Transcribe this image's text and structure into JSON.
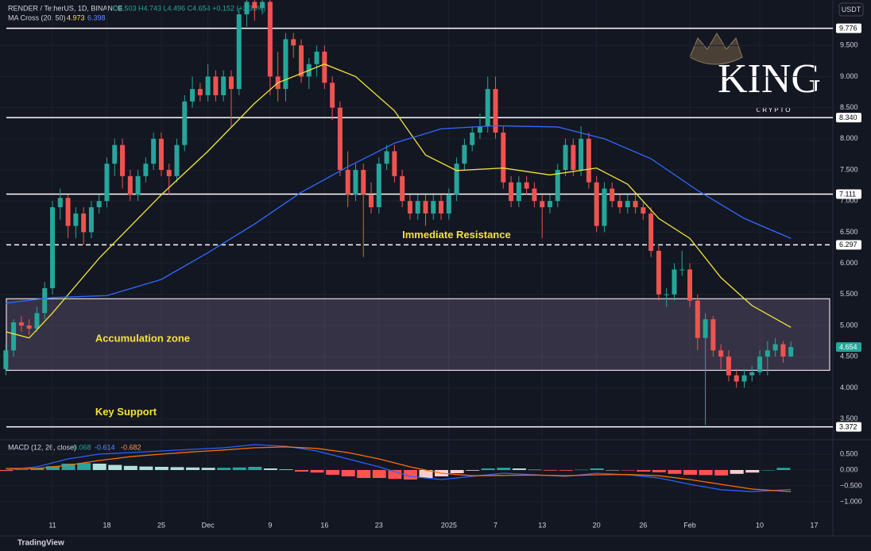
{
  "chart_data": {
    "type": "candlestick",
    "header": {
      "symbol": "RENDER / TetherUS, 1D, BINANCE",
      "ohlc": "O4.503 H4.743 L4.496 C4.654 +0.152 (+3.38%)",
      "currency": "USDT"
    },
    "watermark": {
      "title": "KING",
      "subtitle": "CRYPTO"
    },
    "footer": "TradingView",
    "xlim": [
      -6.75,
      100.4
    ],
    "xticks": [
      {
        "value": 0,
        "label": "11"
      },
      {
        "value": 7,
        "label": "18"
      },
      {
        "value": 14,
        "label": "25"
      },
      {
        "value": 20,
        "label": "Dec"
      },
      {
        "value": 28,
        "label": "9"
      },
      {
        "value": 35,
        "label": "16"
      },
      {
        "value": 42,
        "label": "23"
      },
      {
        "value": 51,
        "label": "2025"
      },
      {
        "value": 57,
        "label": "7"
      },
      {
        "value": 63,
        "label": "13"
      },
      {
        "value": 70,
        "label": "20"
      },
      {
        "value": 76,
        "label": "26"
      },
      {
        "value": 82,
        "label": "Feb"
      },
      {
        "value": 91,
        "label": "10"
      },
      {
        "value": 98,
        "label": "17"
      }
    ],
    "ylim": [
      3.214,
      10.23
    ],
    "yticks": [
      {
        "value": 9.5,
        "label": "9.500"
      },
      {
        "value": 9,
        "label": "9.000"
      },
      {
        "value": 8.5,
        "label": "8.500"
      },
      {
        "value": 8,
        "label": "8.000"
      },
      {
        "value": 7.5,
        "label": "7.500"
      },
      {
        "value": 7,
        "label": "7.000"
      },
      {
        "value": 6.5,
        "label": "6.500"
      },
      {
        "value": 6,
        "label": "6.000"
      },
      {
        "value": 5.5,
        "label": "5.500"
      },
      {
        "value": 5,
        "label": "5.000"
      },
      {
        "value": 4.5,
        "label": "4.500"
      },
      {
        "value": 4,
        "label": "4.000"
      },
      {
        "value": 3.5,
        "label": "3.500"
      }
    ],
    "grid": true,
    "up_color": "#26a69a",
    "down_color": "#ef5350",
    "candles": {
      "x": [
        -6,
        -5,
        -4,
        -3,
        -2,
        -1,
        0,
        1,
        2,
        3,
        4,
        5,
        6,
        7,
        8,
        9,
        10,
        11,
        12,
        13,
        14,
        15,
        16,
        17,
        18,
        19,
        20,
        21,
        22,
        23,
        24,
        25,
        26,
        27,
        28,
        29,
        30,
        31,
        32,
        33,
        34,
        35,
        36,
        37,
        38,
        39,
        40,
        41,
        42,
        43,
        44,
        45,
        46,
        47,
        48,
        49,
        50,
        51,
        52,
        53,
        54,
        55,
        56,
        57,
        58,
        59,
        60,
        61,
        62,
        63,
        64,
        65,
        66,
        67,
        68,
        69,
        70,
        71,
        72,
        73,
        74,
        75,
        76,
        77,
        78,
        79,
        80,
        81,
        82,
        83,
        84,
        85,
        86,
        87,
        88,
        89,
        90,
        91,
        92,
        93,
        94,
        95
      ],
      "values": [
        [
          4.3,
          4.7,
          4.2,
          4.6
        ],
        [
          4.6,
          5.1,
          4.5,
          5.05
        ],
        [
          5.05,
          5.15,
          4.9,
          5.0
        ],
        [
          5.0,
          5.1,
          4.85,
          4.95
        ],
        [
          4.95,
          5.3,
          4.9,
          5.2
        ],
        [
          5.2,
          5.7,
          5.1,
          5.6
        ],
        [
          5.6,
          7.0,
          5.5,
          6.9
        ],
        [
          6.9,
          7.2,
          6.7,
          7.05
        ],
        [
          7.05,
          7.1,
          6.4,
          6.6
        ],
        [
          6.6,
          6.9,
          6.4,
          6.8
        ],
        [
          6.8,
          6.9,
          6.3,
          6.5
        ],
        [
          6.5,
          7.0,
          6.4,
          6.9
        ],
        [
          6.9,
          7.1,
          6.8,
          7.0
        ],
        [
          7.0,
          7.7,
          6.9,
          7.6
        ],
        [
          7.6,
          8.0,
          7.4,
          7.9
        ],
        [
          7.9,
          8.0,
          7.2,
          7.4
        ],
        [
          7.4,
          7.5,
          7.0,
          7.1
        ],
        [
          7.1,
          7.5,
          7.0,
          7.4
        ],
        [
          7.4,
          7.7,
          7.3,
          7.6
        ],
        [
          7.6,
          8.1,
          7.5,
          8.0
        ],
        [
          8.0,
          8.1,
          7.4,
          7.5
        ],
        [
          7.5,
          7.6,
          7.1,
          7.4
        ],
        [
          7.4,
          8.0,
          7.3,
          7.9
        ],
        [
          7.9,
          8.7,
          7.8,
          8.6
        ],
        [
          8.6,
          9.0,
          8.5,
          8.8
        ],
        [
          8.8,
          8.9,
          8.6,
          8.7
        ],
        [
          8.7,
          9.2,
          8.6,
          9.0
        ],
        [
          9.0,
          9.1,
          8.6,
          8.7
        ],
        [
          8.7,
          9.1,
          8.6,
          9.0
        ],
        [
          9.0,
          9.1,
          8.2,
          8.8
        ],
        [
          8.8,
          10.1,
          8.7,
          10.0
        ],
        [
          10.0,
          10.23,
          9.8,
          10.2
        ],
        [
          10.2,
          10.23,
          9.9,
          10.1
        ],
        [
          10.1,
          10.23,
          10.0,
          10.2
        ],
        [
          10.2,
          10.23,
          8.7,
          9.0
        ],
        [
          9.0,
          9.4,
          8.6,
          8.8
        ],
        [
          8.8,
          9.7,
          8.6,
          9.6
        ],
        [
          9.6,
          9.7,
          9.3,
          9.5
        ],
        [
          9.5,
          9.6,
          8.9,
          9.0
        ],
        [
          9.0,
          9.3,
          8.8,
          9.2
        ],
        [
          9.2,
          9.5,
          9.0,
          9.4
        ],
        [
          9.4,
          9.5,
          8.8,
          8.9
        ],
        [
          8.9,
          9.0,
          8.3,
          8.5
        ],
        [
          8.5,
          8.6,
          7.4,
          7.5
        ],
        [
          7.5,
          7.8,
          6.9,
          7.1
        ],
        [
          7.1,
          7.6,
          7.0,
          7.5
        ],
        [
          7.5,
          7.6,
          6.1,
          7.1
        ],
        [
          7.1,
          7.3,
          6.8,
          6.9
        ],
        [
          6.9,
          7.7,
          6.8,
          7.6
        ],
        [
          7.6,
          7.9,
          7.5,
          7.8
        ],
        [
          7.8,
          7.9,
          7.3,
          7.4
        ],
        [
          7.4,
          7.5,
          6.9,
          7.0
        ],
        [
          7.0,
          7.1,
          6.7,
          6.8
        ],
        [
          6.8,
          7.1,
          6.7,
          7.0
        ],
        [
          7.0,
          7.1,
          6.6,
          6.8
        ],
        [
          6.8,
          7.1,
          6.7,
          7.0
        ],
        [
          7.0,
          7.1,
          6.7,
          6.8
        ],
        [
          6.8,
          7.2,
          6.7,
          7.1
        ],
        [
          7.1,
          7.7,
          7.0,
          7.6
        ],
        [
          7.6,
          8.0,
          7.5,
          7.9
        ],
        [
          7.9,
          8.2,
          7.8,
          8.1
        ],
        [
          8.1,
          8.4,
          8.0,
          8.2
        ],
        [
          8.2,
          9.0,
          8.1,
          8.8
        ],
        [
          8.8,
          9.0,
          8.0,
          8.1
        ],
        [
          8.1,
          8.2,
          7.2,
          7.3
        ],
        [
          7.3,
          7.4,
          6.9,
          7.0
        ],
        [
          7.0,
          7.4,
          6.9,
          7.3
        ],
        [
          7.3,
          7.4,
          7.1,
          7.2
        ],
        [
          7.2,
          7.3,
          6.9,
          7.0
        ],
        [
          7.0,
          7.1,
          6.4,
          6.9
        ],
        [
          6.9,
          7.1,
          6.8,
          7.0
        ],
        [
          7.0,
          7.6,
          6.9,
          7.5
        ],
        [
          7.5,
          8.0,
          7.4,
          7.9
        ],
        [
          7.9,
          8.0,
          7.4,
          7.5
        ],
        [
          7.5,
          8.2,
          7.4,
          8.0
        ],
        [
          8.0,
          8.1,
          7.2,
          7.3
        ],
        [
          7.3,
          7.4,
          6.5,
          6.6
        ],
        [
          6.6,
          7.3,
          6.5,
          7.2
        ],
        [
          7.2,
          7.3,
          6.9,
          7.0
        ],
        [
          7.0,
          7.1,
          6.8,
          6.9
        ],
        [
          6.9,
          7.1,
          6.8,
          7.0
        ],
        [
          7.0,
          7.1,
          6.8,
          6.9
        ],
        [
          6.9,
          7.0,
          6.7,
          6.8
        ],
        [
          6.8,
          6.9,
          6.1,
          6.2
        ],
        [
          6.2,
          6.3,
          5.4,
          5.5
        ],
        [
          5.5,
          5.6,
          5.3,
          5.5
        ],
        [
          5.5,
          6.0,
          5.4,
          5.9
        ],
        [
          5.9,
          6.2,
          5.8,
          5.9
        ],
        [
          5.9,
          6.0,
          5.3,
          5.4
        ],
        [
          5.4,
          5.5,
          4.6,
          4.8
        ],
        [
          4.8,
          5.2,
          3.4,
          5.1
        ],
        [
          5.1,
          5.15,
          4.5,
          4.6
        ],
        [
          4.6,
          4.7,
          4.3,
          4.5
        ],
        [
          4.5,
          4.6,
          4.1,
          4.2
        ],
        [
          4.2,
          4.3,
          4.0,
          4.1
        ],
        [
          4.1,
          4.3,
          4.0,
          4.2
        ],
        [
          4.2,
          4.35,
          4.1,
          4.25
        ],
        [
          4.25,
          4.6,
          4.2,
          4.5
        ],
        [
          4.5,
          4.75,
          4.2,
          4.6
        ],
        [
          4.6,
          4.8,
          4.5,
          4.7
        ],
        [
          4.7,
          4.75,
          4.4,
          4.502
        ],
        [
          4.503,
          4.743,
          4.496,
          4.654
        ]
      ]
    },
    "ma": {
      "label": "MA Cross (20, 50)",
      "series": [
        {
          "name": "MA 20",
          "color": "#f5e33b",
          "last_value": 4.973,
          "x": [
            -6,
            -3,
            0,
            6,
            14,
            20,
            26,
            29,
            35,
            39,
            44,
            48,
            52,
            58,
            64,
            70,
            74,
            78,
            82,
            86,
            90,
            95
          ],
          "values": [
            4.9,
            4.8,
            5.2,
            6.08,
            7.1,
            7.8,
            8.57,
            8.9,
            9.2,
            9.0,
            8.45,
            7.74,
            7.49,
            7.53,
            7.42,
            7.53,
            7.27,
            6.72,
            6.4,
            5.77,
            5.32,
            4.97
          ]
        },
        {
          "name": "MA 50",
          "color": "#2f6bff",
          "last_value": 6.398,
          "x": [
            -6,
            0,
            7,
            14,
            20,
            26,
            32,
            38,
            44,
            50,
            57,
            65,
            71,
            77,
            83,
            89,
            95
          ],
          "values": [
            5.36,
            5.45,
            5.48,
            5.74,
            6.17,
            6.63,
            7.14,
            7.55,
            7.93,
            8.16,
            8.21,
            8.19,
            8.0,
            7.68,
            7.17,
            6.72,
            6.4
          ]
        }
      ]
    },
    "levels": [
      9.776,
      {
        "value": 8.34,
        "label": "8.340"
      },
      7.111,
      6.297,
      3.372
    ],
    "level_styles": [
      "solid",
      "solid",
      "solid",
      "dashed",
      "solid"
    ],
    "zone": {
      "top": 5.43,
      "bottom": 4.28
    },
    "annotations": [
      {
        "text": "Immediate Resistance",
        "x": 45,
        "y": 6.45
      },
      {
        "text": "Accumulation zone",
        "x": 5.5,
        "y": 4.78
      },
      {
        "text": "Key Support",
        "x": 5.5,
        "y": 3.6
      }
    ],
    "macd": {
      "label": "MACD (12, 26, close)",
      "ylim": [
        -1.575,
        0.8
      ],
      "yticks": [
        {
          "value": 0.5,
          "label": "0.500"
        },
        {
          "value": 0,
          "label": "0.000"
        },
        {
          "value": -0.5,
          "label": "−0.500"
        },
        {
          "value": -1,
          "label": "−1.000"
        }
      ],
      "histogram": {
        "name": "Histogram",
        "last_value": 0.068,
        "x": [
          -6,
          -4,
          -2,
          0,
          2,
          4,
          6,
          8,
          10,
          12,
          14,
          16,
          18,
          20,
          22,
          24,
          26,
          28,
          30,
          32,
          34,
          36,
          38,
          40,
          42,
          44,
          46,
          48,
          50,
          52,
          54,
          56,
          58,
          60,
          62,
          64,
          66,
          68,
          70,
          72,
          74,
          76,
          78,
          80,
          82,
          84,
          86,
          88,
          90,
          92,
          94
        ],
        "values": [
          -0.03,
          0.02,
          0.05,
          0.12,
          0.2,
          0.22,
          0.2,
          0.16,
          0.13,
          0.11,
          0.1,
          0.09,
          0.08,
          0.07,
          0.07,
          0.08,
          0.1,
          0.05,
          0.02,
          -0.05,
          -0.08,
          -0.15,
          -0.2,
          -0.25,
          -0.25,
          -0.28,
          -0.3,
          -0.25,
          -0.2,
          -0.1,
          -0.02,
          0.05,
          0.07,
          0.05,
          0.01,
          -0.02,
          -0.02,
          0.01,
          0.05,
          0.0,
          -0.01,
          -0.05,
          -0.07,
          -0.12,
          -0.15,
          -0.16,
          -0.17,
          -0.12,
          -0.08,
          0.0,
          0.068
        ]
      },
      "series": [
        {
          "name": "MACD",
          "color": "#2962ff",
          "last_value": -0.614,
          "x": [
            -6,
            -2,
            2,
            6,
            10,
            14,
            18,
            22,
            26,
            30,
            34,
            38,
            42,
            46,
            50,
            54,
            58,
            62,
            66,
            70,
            74,
            78,
            82,
            86,
            90,
            95
          ],
          "values": [
            0.0,
            0.1,
            0.35,
            0.5,
            0.55,
            0.6,
            0.65,
            0.7,
            0.8,
            0.75,
            0.6,
            0.35,
            0.1,
            -0.2,
            -0.3,
            -0.2,
            -0.1,
            -0.15,
            -0.2,
            -0.1,
            -0.15,
            -0.25,
            -0.45,
            -0.62,
            -0.68,
            -0.614
          ]
        },
        {
          "name": "Signal",
          "color": "#ff6d00",
          "last_value": -0.682,
          "x": [
            -6,
            -2,
            2,
            6,
            10,
            14,
            18,
            22,
            26,
            30,
            34,
            38,
            42,
            46,
            50,
            54,
            58,
            62,
            66,
            70,
            74,
            78,
            82,
            86,
            90,
            95
          ],
          "values": [
            0.05,
            0.05,
            0.15,
            0.3,
            0.42,
            0.5,
            0.57,
            0.63,
            0.7,
            0.73,
            0.68,
            0.55,
            0.35,
            0.1,
            -0.1,
            -0.18,
            -0.17,
            -0.16,
            -0.18,
            -0.15,
            -0.14,
            -0.18,
            -0.3,
            -0.45,
            -0.6,
            -0.682
          ]
        }
      ]
    }
  }
}
